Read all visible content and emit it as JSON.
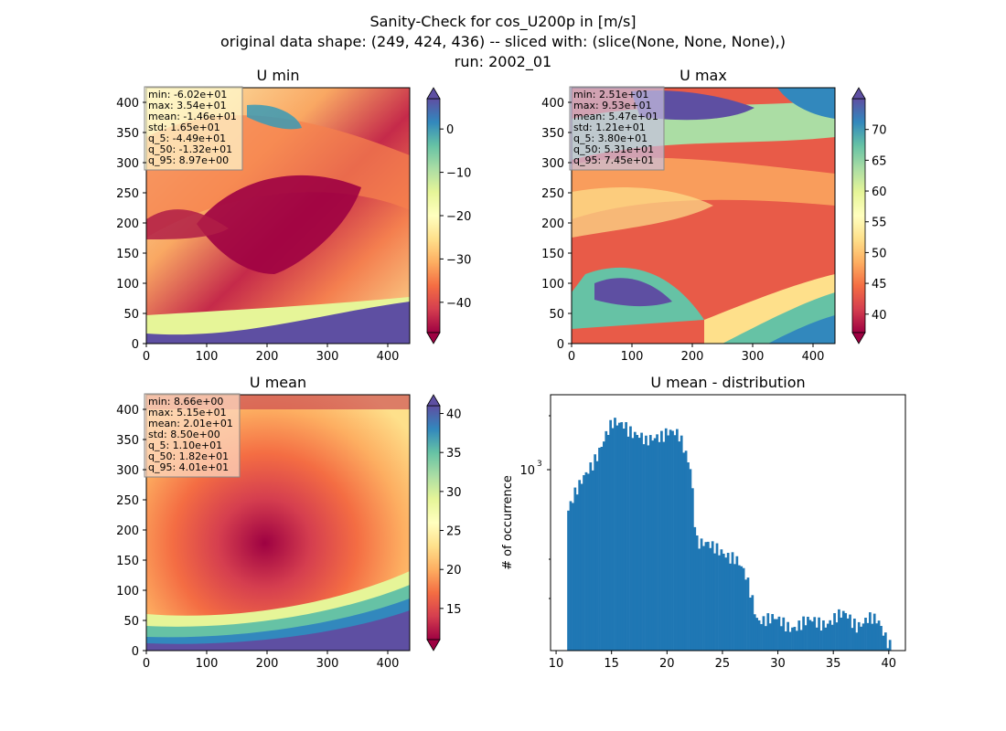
{
  "figure": {
    "title_lines": [
      "Sanity-Check for cos_U200p in [m/s]",
      "original data shape: (249, 424, 436) -- sliced with: (slice(None, None, None),)",
      "run: 2002_01"
    ]
  },
  "panels": [
    {
      "id": "umin",
      "title": "U min",
      "type": "heatmap",
      "xlim": [
        0,
        436
      ],
      "ylim": [
        0,
        424
      ],
      "xticks": [
        "0",
        "100",
        "200",
        "300",
        "400"
      ],
      "yticks": [
        "0",
        "50",
        "100",
        "150",
        "200",
        "250",
        "300",
        "350",
        "400"
      ],
      "colorbar": {
        "min": -47,
        "max": 7,
        "ticks": [
          "0",
          "−10",
          "−20",
          "−30",
          "−40"
        ],
        "tick_values": [
          0,
          -10,
          -20,
          -30,
          -40
        ]
      },
      "stats": [
        "min: -6.02e+01",
        "max: 3.54e+01",
        "mean: -1.46e+01",
        "std: 1.65e+01",
        "q_5: -4.49e+01",
        "q_50: -1.32e+01",
        "q_95: 8.97e+00"
      ],
      "stats_bg": "#fffbd0"
    },
    {
      "id": "umax",
      "title": "U max",
      "type": "heatmap",
      "xlim": [
        0,
        436
      ],
      "ylim": [
        0,
        424
      ],
      "xticks": [
        "0",
        "100",
        "200",
        "300",
        "400"
      ],
      "yticks": [
        "0",
        "50",
        "100",
        "150",
        "200",
        "250",
        "300",
        "350",
        "400"
      ],
      "colorbar": {
        "min": 37,
        "max": 75,
        "ticks": [
          "70",
          "65",
          "60",
          "55",
          "50",
          "45",
          "40"
        ],
        "tick_values": [
          70,
          65,
          60,
          55,
          50,
          45,
          40
        ]
      },
      "stats": [
        "min: 2.51e+01",
        "max: 9.53e+01",
        "mean: 5.47e+01",
        "std: 1.21e+01",
        "q_5: 3.80e+01",
        "q_50: 5.31e+01",
        "q_95: 7.45e+01"
      ],
      "stats_bg": "#c8c0e0"
    },
    {
      "id": "umean",
      "title": "U mean",
      "type": "heatmap",
      "xlim": [
        0,
        436
      ],
      "ylim": [
        0,
        424
      ],
      "xticks": [
        "0",
        "100",
        "200",
        "300",
        "400"
      ],
      "yticks": [
        "0",
        "50",
        "100",
        "150",
        "200",
        "250",
        "300",
        "350",
        "400"
      ],
      "colorbar": {
        "min": 11,
        "max": 41,
        "ticks": [
          "40",
          "35",
          "30",
          "25",
          "20",
          "15"
        ],
        "tick_values": [
          40,
          35,
          30,
          25,
          20,
          15
        ]
      },
      "stats": [
        "min: 8.66e+00",
        "max: 5.15e+01",
        "mean: 2.01e+01",
        "std: 8.50e+00",
        "q_5: 1.10e+01",
        "q_50: 1.82e+01",
        "q_95: 4.01e+01"
      ],
      "stats_bg": "#fcd8c0"
    }
  ],
  "chart_data": {
    "type": "bar",
    "title": "U mean - distribution",
    "xlabel": "",
    "ylabel": "# of occurrence",
    "yscale": "log",
    "bar_color": "#1f77b4",
    "xlim": [
      9.5,
      41.5
    ],
    "ylim": [
      220,
      2800
    ],
    "xticks": [
      "10",
      "15",
      "20",
      "25",
      "30",
      "35",
      "40"
    ],
    "ytick_label": "10",
    "ytick_exponent": "3",
    "bin_width": 0.2,
    "x": [
      11.0,
      12.0,
      13.0,
      14.0,
      15.0,
      16.0,
      17.0,
      18.0,
      19.0,
      20.0,
      21.0,
      22.0,
      22.5,
      23.0,
      24.0,
      25.0,
      26.0,
      26.5,
      27.0,
      27.5,
      28.0,
      29.0,
      30.0,
      31.0,
      32.0,
      33.0,
      34.0,
      35.0,
      36.0,
      37.0,
      38.0,
      39.0,
      39.5,
      40.0
    ],
    "values": [
      900,
      1100,
      1400,
      1700,
      2050,
      2150,
      1900,
      1700,
      1900,
      1950,
      1800,
      1400,
      680,
      640,
      600,
      600,
      550,
      500,
      450,
      380,
      310,
      300,
      290,
      285,
      285,
      290,
      295,
      300,
      310,
      290,
      300,
      285,
      260,
      240
    ]
  }
}
